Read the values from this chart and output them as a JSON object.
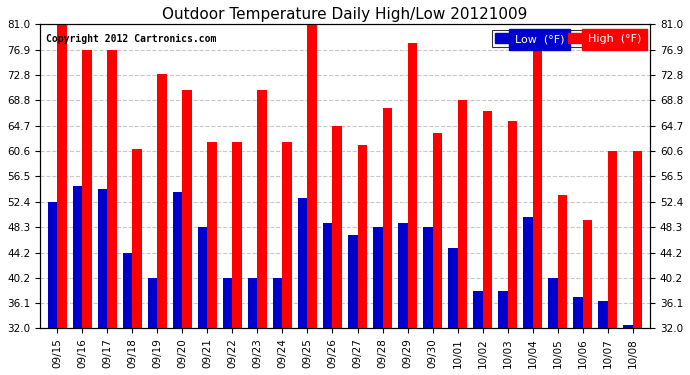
{
  "title": "Outdoor Temperature Daily High/Low 20121009",
  "copyright": "Copyright 2012 Cartronics.com",
  "background_color": "#ffffff",
  "grid_color": "#c8c8c8",
  "bar_color_low": "#0000cc",
  "bar_color_high": "#ff0000",
  "legend_low_label": "Low  (°F)",
  "legend_high_label": "High  (°F)",
  "dates": [
    "09/15",
    "09/16",
    "09/17",
    "09/18",
    "09/19",
    "09/20",
    "09/21",
    "09/22",
    "09/23",
    "09/24",
    "09/25",
    "09/26",
    "09/27",
    "09/28",
    "09/29",
    "09/30",
    "10/01",
    "10/02",
    "10/03",
    "10/04",
    "10/05",
    "10/06",
    "10/07",
    "10/08"
  ],
  "highs": [
    81.0,
    76.9,
    76.9,
    61.0,
    73.0,
    70.5,
    62.0,
    62.0,
    70.5,
    62.0,
    81.5,
    64.7,
    61.5,
    67.5,
    78.0,
    63.5,
    68.8,
    67.0,
    65.5,
    76.9,
    53.5,
    49.5,
    60.6,
    60.6
  ],
  "lows": [
    52.4,
    55.0,
    54.5,
    44.2,
    40.2,
    54.0,
    48.3,
    40.2,
    40.2,
    40.2,
    53.0,
    49.0,
    47.0,
    48.3,
    49.0,
    48.3,
    45.0,
    38.0,
    38.0,
    50.0,
    40.2,
    37.0,
    36.5,
    32.5
  ],
  "ylim_min": 32.0,
  "ylim_max": 81.0,
  "yticks": [
    32.0,
    36.1,
    40.2,
    44.2,
    48.3,
    52.4,
    56.5,
    60.6,
    64.7,
    68.8,
    72.8,
    76.9,
    81.0
  ]
}
